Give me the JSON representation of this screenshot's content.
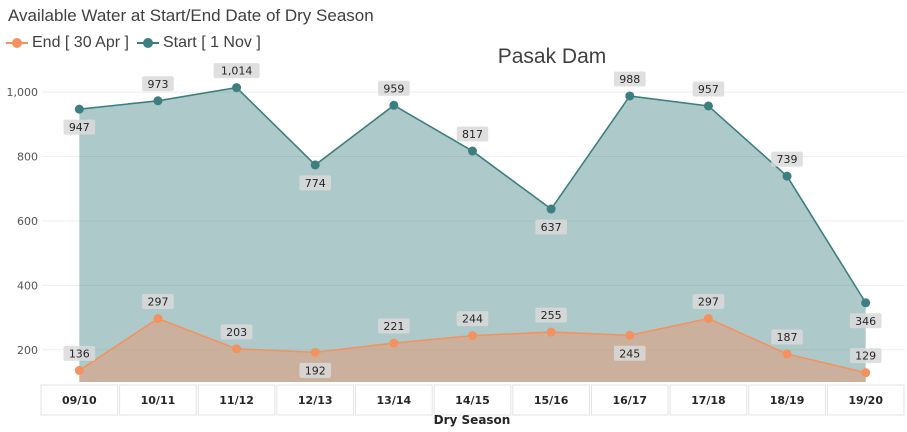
{
  "chart_data": {
    "type": "area",
    "title": "Available Water at Start/End Date of Dry Season",
    "subtitle": "Pasak Dam",
    "xlabel": "Dry  Season",
    "ylabel": "",
    "ylim": [
      100,
      1050
    ],
    "yticks": [
      200,
      400,
      600,
      800,
      1000
    ],
    "ytick_labels": [
      "200",
      "400",
      "600",
      "800",
      "1,000"
    ],
    "legend_position": "top-left",
    "grid": true,
    "categories": [
      "09/10",
      "10/11",
      "11/12",
      "12/13",
      "13/14",
      "14/15",
      "15/16",
      "16/17",
      "17/18",
      "18/19",
      "19/20"
    ],
    "series": [
      {
        "name": "End [ 30 Apr ]",
        "color": "#f4925f",
        "values": [
          136,
          297,
          203,
          192,
          221,
          244,
          255,
          245,
          297,
          187,
          129
        ],
        "labels": [
          "136",
          "297",
          "203",
          "192",
          "221",
          "244",
          "255",
          "245",
          "297",
          "187",
          "129"
        ],
        "label_side": [
          "above",
          "above",
          "above",
          "below",
          "above",
          "above",
          "above",
          "below",
          "above",
          "above",
          "above"
        ]
      },
      {
        "name": "Start [ 1 Nov ]",
        "color": "#3d7f80",
        "values": [
          947,
          973,
          1014,
          774,
          959,
          817,
          637,
          988,
          957,
          739,
          346
        ],
        "labels": [
          "947",
          "973",
          "1,014",
          "774",
          "959",
          "817",
          "637",
          "988",
          "957",
          "739",
          "346"
        ],
        "label_side": [
          "below",
          "above",
          "above",
          "below",
          "above",
          "above",
          "below",
          "above",
          "above",
          "above",
          "below"
        ]
      }
    ]
  }
}
